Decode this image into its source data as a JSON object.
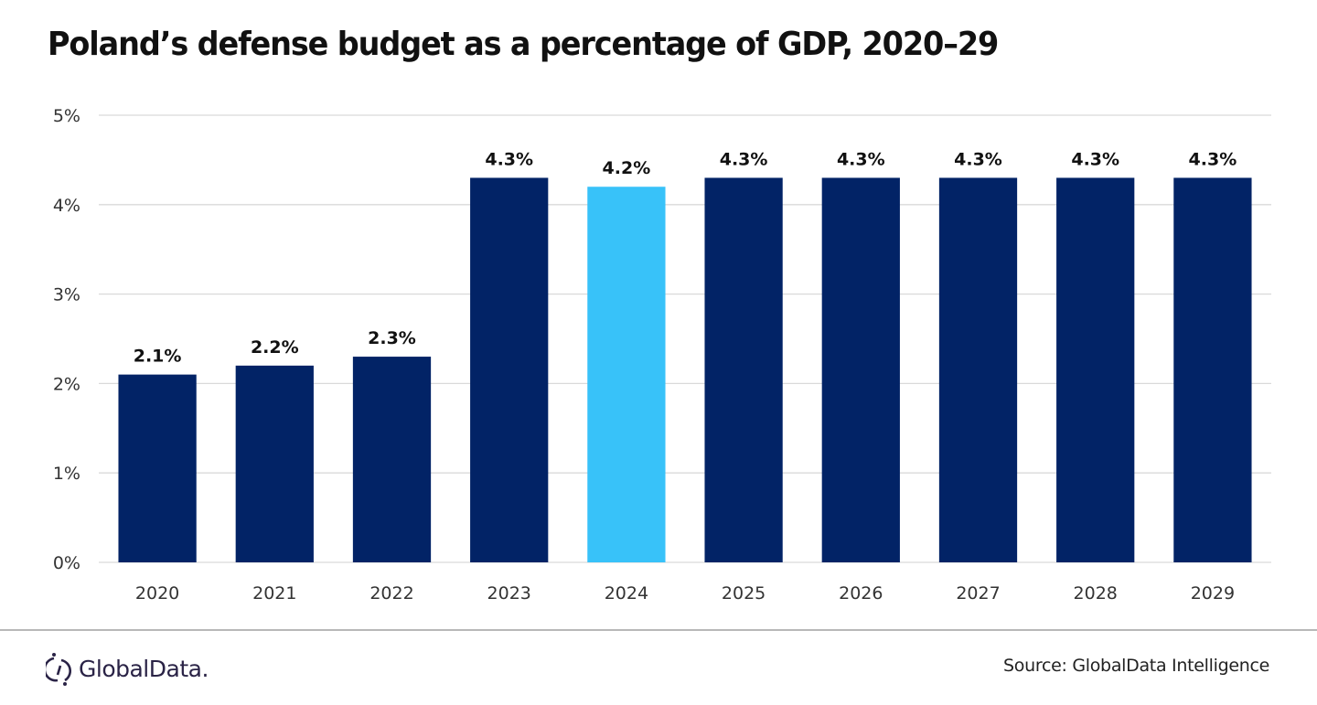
{
  "chart_data": {
    "type": "bar",
    "title": "Poland’s defense budget as a percentage of GDP, 2020–29",
    "xlabel": "",
    "ylabel": "",
    "categories": [
      "2020",
      "2021",
      "2022",
      "2023",
      "2024",
      "2025",
      "2026",
      "2027",
      "2028",
      "2029"
    ],
    "values": [
      2.1,
      2.2,
      2.3,
      4.3,
      4.2,
      4.3,
      4.3,
      4.3,
      4.3,
      4.3
    ],
    "data_labels": [
      "2.1%",
      "2.2%",
      "2.3%",
      "4.3%",
      "4.2%",
      "4.3%",
      "4.3%",
      "4.3%",
      "4.3%",
      "4.3%"
    ],
    "highlight_index": 4,
    "ylim": [
      0,
      5
    ],
    "yticks": [
      0,
      1,
      2,
      3,
      4,
      5
    ],
    "ytick_labels": [
      "0%",
      "1%",
      "2%",
      "3%",
      "4%",
      "5%"
    ],
    "grid": true,
    "legend": "none",
    "colors": {
      "bar": "#022366",
      "highlight": "#38C2F9",
      "grid": "#d9d9d9"
    }
  },
  "footer": {
    "logo_text": "GlobalData.",
    "source": "Source: GlobalData Intelligence"
  }
}
